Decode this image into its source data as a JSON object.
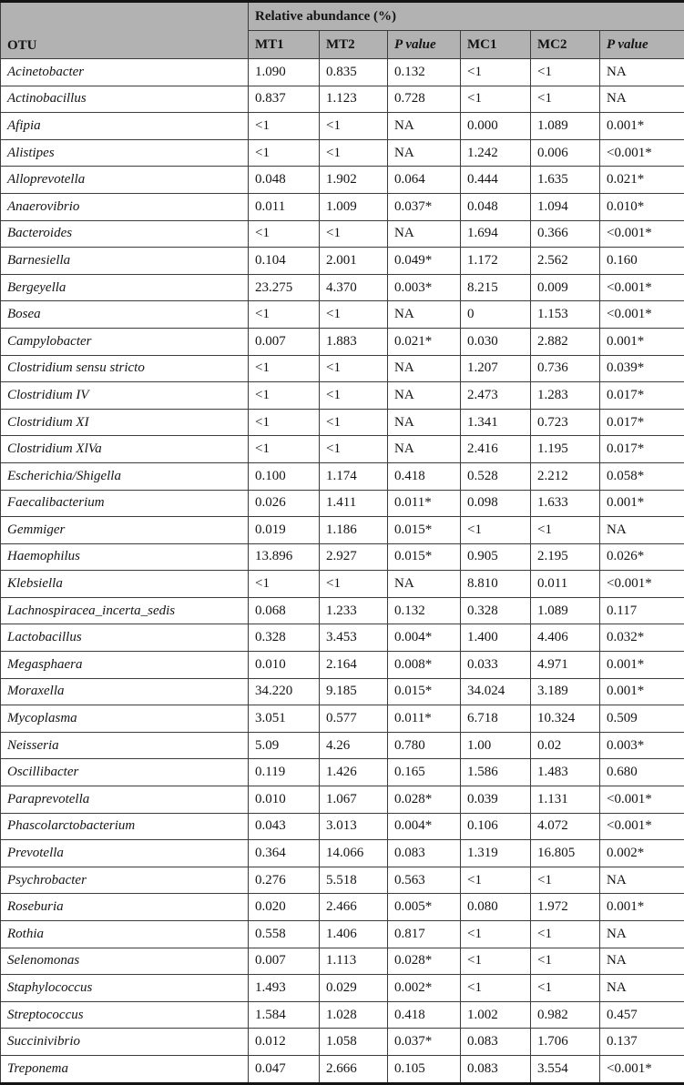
{
  "table": {
    "header": {
      "otu_label": "OTU",
      "group_label": "Relative abundance (%)",
      "columns": [
        "MT1",
        "MT2",
        "P value",
        "MC1",
        "MC2",
        "P value"
      ]
    },
    "rows": [
      {
        "otu": "Acinetobacter",
        "values": [
          "1.090",
          "0.835",
          "0.132",
          "<1",
          "<1",
          "NA"
        ]
      },
      {
        "otu": "Actinobacillus",
        "values": [
          "0.837",
          "1.123",
          "0.728",
          "<1",
          "<1",
          "NA"
        ]
      },
      {
        "otu": "Afipia",
        "values": [
          "<1",
          "<1",
          "NA",
          "0.000",
          "1.089",
          "0.001*"
        ]
      },
      {
        "otu": "Alistipes",
        "values": [
          "<1",
          "<1",
          "NA",
          "1.242",
          "0.006",
          "<0.001*"
        ]
      },
      {
        "otu": "Alloprevotella",
        "values": [
          "0.048",
          "1.902",
          "0.064",
          "0.444",
          "1.635",
          "0.021*"
        ]
      },
      {
        "otu": "Anaerovibrio",
        "values": [
          "0.011",
          "1.009",
          "0.037*",
          "0.048",
          "1.094",
          "0.010*"
        ]
      },
      {
        "otu": "Bacteroides",
        "values": [
          "<1",
          "<1",
          "NA",
          "1.694",
          "0.366",
          "<0.001*"
        ]
      },
      {
        "otu": "Barnesiella",
        "values": [
          "0.104",
          "2.001",
          "0.049*",
          "1.172",
          "2.562",
          "0.160"
        ]
      },
      {
        "otu": "Bergeyella",
        "values": [
          "23.275",
          "4.370",
          "0.003*",
          "8.215",
          "0.009",
          "<0.001*"
        ]
      },
      {
        "otu": "Bosea",
        "values": [
          "<1",
          "<1",
          "NA",
          "0",
          "1.153",
          "<0.001*"
        ]
      },
      {
        "otu": "Campylobacter",
        "values": [
          "0.007",
          "1.883",
          "0.021*",
          "0.030",
          "2.882",
          "0.001*"
        ]
      },
      {
        "otu": "Clostridium sensu stricto",
        "values": [
          "<1",
          "<1",
          "NA",
          "1.207",
          "0.736",
          "0.039*"
        ]
      },
      {
        "otu": "Clostridium IV",
        "values": [
          "<1",
          "<1",
          "NA",
          "2.473",
          "1.283",
          "0.017*"
        ]
      },
      {
        "otu": "Clostridium XI",
        "values": [
          "<1",
          "<1",
          "NA",
          "1.341",
          "0.723",
          "0.017*"
        ]
      },
      {
        "otu": "Clostridium XlVa",
        "values": [
          "<1",
          "<1",
          "NA",
          "2.416",
          "1.195",
          "0.017*"
        ]
      },
      {
        "otu": "Escherichia/Shigella",
        "values": [
          "0.100",
          "1.174",
          "0.418",
          "0.528",
          "2.212",
          "0.058*"
        ]
      },
      {
        "otu": "Faecalibacterium",
        "values": [
          "0.026",
          "1.411",
          "0.011*",
          "0.098",
          "1.633",
          "0.001*"
        ]
      },
      {
        "otu": "Gemmiger",
        "values": [
          "0.019",
          "1.186",
          "0.015*",
          "<1",
          "<1",
          "NA"
        ]
      },
      {
        "otu": "Haemophilus",
        "values": [
          "13.896",
          "2.927",
          "0.015*",
          "0.905",
          "2.195",
          "0.026*"
        ]
      },
      {
        "otu": "Klebsiella",
        "values": [
          "<1",
          "<1",
          "NA",
          "8.810",
          "0.011",
          "<0.001*"
        ]
      },
      {
        "otu": "Lachnospiracea_incerta_sedis",
        "values": [
          "0.068",
          "1.233",
          "0.132",
          "0.328",
          "1.089",
          "0.117"
        ]
      },
      {
        "otu": "Lactobacillus",
        "values": [
          "0.328",
          "3.453",
          "0.004*",
          "1.400",
          "4.406",
          "0.032*"
        ]
      },
      {
        "otu": "Megasphaera",
        "values": [
          "0.010",
          "2.164",
          "0.008*",
          "0.033",
          "4.971",
          "0.001*"
        ]
      },
      {
        "otu": "Moraxella",
        "values": [
          "34.220",
          "9.185",
          "0.015*",
          "34.024",
          "3.189",
          "0.001*"
        ]
      },
      {
        "otu": "Mycoplasma",
        "values": [
          "3.051",
          "0.577",
          "0.011*",
          "6.718",
          "10.324",
          "0.509"
        ]
      },
      {
        "otu": "Neisseria",
        "values": [
          "5.09",
          "4.26",
          "0.780",
          "1.00",
          "0.02",
          "0.003*"
        ]
      },
      {
        "otu": "Oscillibacter",
        "values": [
          "0.119",
          "1.426",
          "0.165",
          "1.586",
          "1.483",
          "0.680"
        ]
      },
      {
        "otu": "Paraprevotella",
        "values": [
          "0.010",
          "1.067",
          "0.028*",
          "0.039",
          "1.131",
          "<0.001*"
        ]
      },
      {
        "otu": "Phascolarctobacterium",
        "values": [
          "0.043",
          "3.013",
          "0.004*",
          "0.106",
          "4.072",
          "<0.001*"
        ]
      },
      {
        "otu": "Prevotella",
        "values": [
          "0.364",
          "14.066",
          "0.083",
          "1.319",
          "16.805",
          "0.002*"
        ]
      },
      {
        "otu": "Psychrobacter",
        "values": [
          "0.276",
          "5.518",
          "0.563",
          "<1",
          "<1",
          "NA"
        ]
      },
      {
        "otu": "Roseburia",
        "values": [
          "0.020",
          "2.466",
          "0.005*",
          "0.080",
          "1.972",
          "0.001*"
        ]
      },
      {
        "otu": "Rothia",
        "values": [
          "0.558",
          "1.406",
          "0.817",
          "<1",
          "<1",
          "NA"
        ]
      },
      {
        "otu": "Selenomonas",
        "values": [
          "0.007",
          "1.113",
          "0.028*",
          "<1",
          "<1",
          "NA"
        ]
      },
      {
        "otu": "Staphylococcus",
        "values": [
          "1.493",
          "0.029",
          "0.002*",
          "<1",
          "<1",
          "NA"
        ]
      },
      {
        "otu": "Streptococcus",
        "values": [
          "1.584",
          "1.028",
          "0.418",
          "1.002",
          "0.982",
          "0.457"
        ]
      },
      {
        "otu": "Succinivibrio",
        "values": [
          "0.012",
          "1.058",
          "0.037*",
          "0.083",
          "1.706",
          "0.137"
        ]
      },
      {
        "otu": "Treponema",
        "values": [
          "0.047",
          "2.666",
          "0.105",
          "0.083",
          "3.554",
          "<0.001*"
        ]
      }
    ]
  },
  "colors": {
    "header_background": "#b2b2b2",
    "outer_border": "#141414",
    "inner_border": "#3c3c3c",
    "text": "#141414",
    "row_background": "#ffffff"
  }
}
